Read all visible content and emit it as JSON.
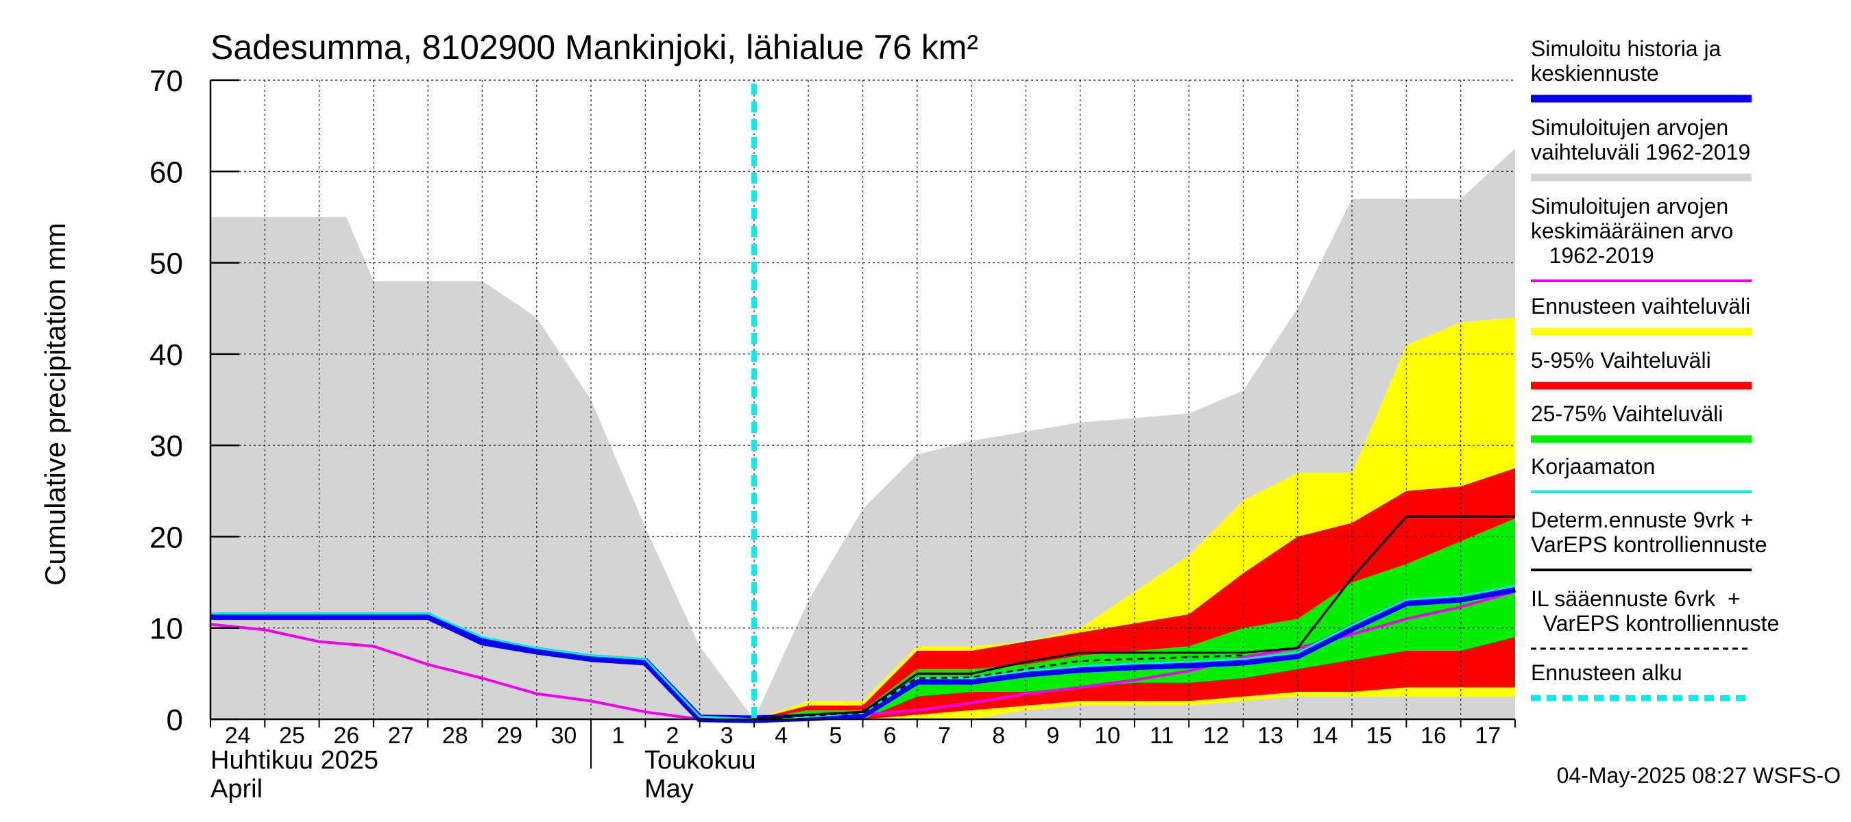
{
  "chart_data": {
    "type": "area",
    "title": "Sadesumma, 8102900 Mankinjoki, lähialue 76 km²",
    "ylabel": "Cumulative precipitation   mm",
    "ylim": [
      0,
      70
    ],
    "yticks": [
      0,
      10,
      20,
      30,
      40,
      50,
      60,
      70
    ],
    "day_labels": [
      "24",
      "25",
      "26",
      "27",
      "28",
      "29",
      "30",
      "1",
      "2",
      "3",
      "4",
      "5",
      "6",
      "7",
      "8",
      "9",
      "10",
      "11",
      "12",
      "13",
      "14",
      "15",
      "16",
      "17"
    ],
    "month_labels": {
      "april_fi": "Huhtikuu  2025",
      "april_en": "April",
      "may_fi": "Toukokuu",
      "may_en": "May"
    },
    "x_index_note": "x is day index: 0 = 24 April, 10 = 4 May (forecast start), 24 = end of 17 May",
    "forecast_start_x": 10,
    "series": {
      "hist_range_upper": [
        [
          0,
          55
        ],
        [
          2,
          55
        ],
        [
          2.5,
          55
        ],
        [
          3,
          48
        ],
        [
          5,
          48
        ],
        [
          6,
          44
        ],
        [
          7,
          35
        ],
        [
          8,
          21
        ],
        [
          9,
          8
        ],
        [
          10,
          0
        ],
        [
          11,
          13
        ],
        [
          12,
          23
        ],
        [
          13,
          29
        ],
        [
          14,
          30.5
        ],
        [
          15,
          31.5
        ],
        [
          16,
          32.5
        ],
        [
          17,
          33
        ],
        [
          18,
          33.5
        ],
        [
          19,
          36
        ],
        [
          20,
          45
        ],
        [
          21,
          57
        ],
        [
          22,
          57
        ],
        [
          23,
          57
        ],
        [
          24,
          62.5
        ]
      ],
      "hist_range_lower": [
        [
          0,
          0
        ],
        [
          24,
          0
        ]
      ],
      "ens_range_upper": [
        [
          10,
          0
        ],
        [
          11,
          2
        ],
        [
          12,
          2
        ],
        [
          13,
          8
        ],
        [
          14,
          8
        ],
        [
          15,
          8.5
        ],
        [
          16,
          10
        ],
        [
          17,
          14
        ],
        [
          18,
          18
        ],
        [
          19,
          24
        ],
        [
          20,
          27
        ],
        [
          21,
          27
        ],
        [
          22,
          41
        ],
        [
          23,
          43.5
        ],
        [
          24,
          44
        ]
      ],
      "ens_range_lower": [
        [
          10,
          0
        ],
        [
          11,
          0
        ],
        [
          12,
          0
        ],
        [
          13,
          0
        ],
        [
          14,
          0
        ],
        [
          15,
          1
        ],
        [
          16,
          1.5
        ],
        [
          17,
          1.5
        ],
        [
          18,
          1.5
        ],
        [
          19,
          2
        ],
        [
          20,
          2.5
        ],
        [
          21,
          2.5
        ],
        [
          22,
          2.5
        ],
        [
          23,
          2.5
        ],
        [
          24,
          2.5
        ]
      ],
      "p5_95_upper": [
        [
          10,
          0
        ],
        [
          11,
          1.5
        ],
        [
          12,
          1.5
        ],
        [
          13,
          7.5
        ],
        [
          14,
          7.5
        ],
        [
          15,
          8.5
        ],
        [
          16,
          9.5
        ],
        [
          17,
          10.5
        ],
        [
          18,
          11.5
        ],
        [
          19,
          16
        ],
        [
          20,
          20
        ],
        [
          21,
          21.5
        ],
        [
          22,
          25
        ],
        [
          23,
          25.5
        ],
        [
          24,
          27.5
        ]
      ],
      "p5_95_lower": [
        [
          10,
          0
        ],
        [
          11,
          0
        ],
        [
          12,
          0
        ],
        [
          13,
          0.5
        ],
        [
          14,
          1
        ],
        [
          15,
          1.5
        ],
        [
          16,
          2
        ],
        [
          17,
          2
        ],
        [
          18,
          2
        ],
        [
          19,
          2.5
        ],
        [
          20,
          3
        ],
        [
          21,
          3
        ],
        [
          22,
          3.5
        ],
        [
          23,
          3.5
        ],
        [
          24,
          3.5
        ]
      ],
      "p25_75_upper": [
        [
          10,
          0
        ],
        [
          11,
          1
        ],
        [
          12,
          1
        ],
        [
          13,
          5.5
        ],
        [
          14,
          5.5
        ],
        [
          15,
          6
        ],
        [
          16,
          7
        ],
        [
          17,
          7.5
        ],
        [
          18,
          8
        ],
        [
          19,
          10
        ],
        [
          20,
          11
        ],
        [
          21,
          15
        ],
        [
          22,
          17
        ],
        [
          23,
          19.5
        ],
        [
          24,
          22
        ]
      ],
      "p25_75_lower": [
        [
          10,
          0
        ],
        [
          11,
          0
        ],
        [
          12,
          0
        ],
        [
          13,
          2.5
        ],
        [
          14,
          3
        ],
        [
          15,
          3
        ],
        [
          16,
          3.5
        ],
        [
          17,
          4
        ],
        [
          18,
          4
        ],
        [
          19,
          4.5
        ],
        [
          20,
          5.5
        ],
        [
          21,
          6.5
        ],
        [
          22,
          7.5
        ],
        [
          23,
          7.5
        ],
        [
          24,
          9
        ]
      ],
      "simulated_history": [
        [
          0,
          11.3
        ],
        [
          4,
          11.3
        ],
        [
          5,
          8.5
        ],
        [
          6,
          7.5
        ],
        [
          7,
          6.7
        ],
        [
          8,
          6.3
        ],
        [
          9,
          0.1
        ],
        [
          10,
          0
        ],
        [
          11,
          0.2
        ],
        [
          12,
          0.5
        ],
        [
          13,
          4.2
        ],
        [
          14,
          4.2
        ],
        [
          15,
          5
        ],
        [
          16,
          5.5
        ],
        [
          17,
          5.8
        ],
        [
          18,
          6
        ],
        [
          19,
          6.3
        ],
        [
          20,
          7
        ],
        [
          21,
          10
        ],
        [
          22,
          12.8
        ],
        [
          23,
          13.2
        ],
        [
          24,
          14.3
        ]
      ],
      "korjaamaton": [
        [
          0,
          11.6
        ],
        [
          4,
          11.6
        ],
        [
          5,
          9
        ],
        [
          6,
          7.8
        ],
        [
          7,
          7
        ],
        [
          8,
          6.6
        ],
        [
          9,
          0.3
        ],
        [
          10,
          0
        ],
        [
          11,
          0.3
        ],
        [
          12,
          0.7
        ],
        [
          13,
          4.5
        ],
        [
          14,
          4.5
        ],
        [
          15,
          5.3
        ],
        [
          16,
          5.8
        ],
        [
          17,
          6.1
        ],
        [
          18,
          6.3
        ],
        [
          19,
          6.6
        ],
        [
          20,
          7.3
        ],
        [
          21,
          10.3
        ],
        [
          22,
          13.1
        ],
        [
          23,
          13.5
        ],
        [
          24,
          14.6
        ]
      ],
      "mean_1962_2019": [
        [
          0,
          10.4
        ],
        [
          1,
          9.8
        ],
        [
          2,
          8.5
        ],
        [
          3,
          8
        ],
        [
          4,
          6
        ],
        [
          5,
          4.5
        ],
        [
          6,
          2.8
        ],
        [
          7,
          2
        ],
        [
          8,
          0.8
        ],
        [
          9,
          0
        ],
        [
          10,
          0
        ],
        [
          11,
          0.2
        ],
        [
          12,
          0.5
        ],
        [
          13,
          1
        ],
        [
          14,
          1.8
        ],
        [
          15,
          2.8
        ],
        [
          16,
          3.5
        ],
        [
          17,
          4.3
        ],
        [
          18,
          5.3
        ],
        [
          19,
          6.8
        ],
        [
          20,
          7.8
        ],
        [
          21,
          9.3
        ],
        [
          22,
          11
        ],
        [
          23,
          12.3
        ],
        [
          24,
          14
        ]
      ],
      "determ_9vrk": [
        [
          10,
          0
        ],
        [
          11,
          0.5
        ],
        [
          12,
          0.8
        ],
        [
          13,
          5
        ],
        [
          14,
          5
        ],
        [
          15,
          6.3
        ],
        [
          16,
          7.3
        ],
        [
          17,
          7.3
        ],
        [
          18,
          7.3
        ],
        [
          19,
          7.3
        ],
        [
          20,
          7.8
        ],
        [
          21,
          15.5
        ],
        [
          22,
          22.2
        ],
        [
          23,
          22.2
        ],
        [
          24,
          22.2
        ]
      ],
      "il_6vrk": [
        [
          10,
          0
        ],
        [
          11,
          0.4
        ],
        [
          12,
          0.7
        ],
        [
          13,
          4.5
        ],
        [
          14,
          4.6
        ],
        [
          15,
          5.5
        ],
        [
          16,
          6.4
        ],
        [
          17,
          6.6
        ],
        [
          18,
          6.8
        ],
        [
          19,
          7
        ]
      ]
    },
    "legend": [
      {
        "label": "Simuloitu historia ja\nkeskiennuste",
        "color": "#0000ee",
        "style": "thick"
      },
      {
        "label": "Simuloitujen arvojen\nvaihteluväli 1962-2019",
        "color": "#d4d4d4",
        "style": "thick"
      },
      {
        "label": "Simuloitujen arvojen\nkeskimääräinen arvo\n   1962-2019",
        "color": "#ee00ee",
        "style": "line"
      },
      {
        "label": "Ennusteen vaihteluväli",
        "color": "#ffff00",
        "style": "thick"
      },
      {
        "label": "5-95% Vaihteluväli",
        "color": "#ff0000",
        "style": "thick"
      },
      {
        "label": "25-75% Vaihteluväli",
        "color": "#00ee00",
        "style": "thick"
      },
      {
        "label": "Korjaamaton",
        "color": "#00eeee",
        "style": "line"
      },
      {
        "label": "Determ.ennuste 9vrk +\nVarEPS kontrolliennuste",
        "color": "#000000",
        "style": "line"
      },
      {
        "label": "IL sääennuste 6vrk  +\n  VarEPS kontrolliennuste",
        "color": "#000000",
        "style": "dashed"
      },
      {
        "label": "Ennusteen alku",
        "color": "#00eeee",
        "style": "dashedthick"
      }
    ],
    "footer": "04-May-2025 08:27 WSFS-O"
  }
}
